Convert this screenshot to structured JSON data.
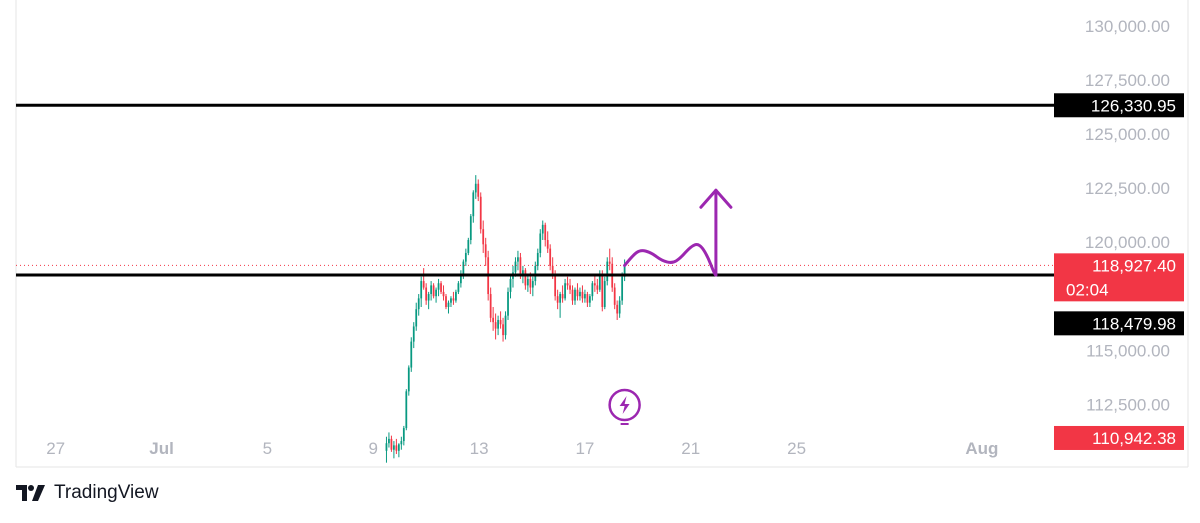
{
  "chart_data": {
    "type": "candlestick",
    "title": "",
    "ylim": [
      109600,
      131200
    ],
    "y_ticks": [
      "130,000.00",
      "127,500.00",
      "125,000.00",
      "122,500.00",
      "120,000.00",
      "115,000.00",
      "112,500.00"
    ],
    "x_ticks": [
      {
        "label": "27",
        "x": "2025-06-27",
        "bold": false
      },
      {
        "label": "Jul",
        "x": "2025-07-01",
        "bold": true
      },
      {
        "label": "5",
        "x": "2025-07-05",
        "bold": false
      },
      {
        "label": "9",
        "x": "2025-07-09",
        "bold": false
      },
      {
        "label": "13",
        "x": "2025-07-13",
        "bold": false
      },
      {
        "label": "17",
        "x": "2025-07-17",
        "bold": false
      },
      {
        "label": "21",
        "x": "2025-07-21",
        "bold": false
      },
      {
        "label": "25",
        "x": "2025-07-25",
        "bold": false
      },
      {
        "label": "Aug",
        "x": "2025-08-01",
        "bold": true
      }
    ],
    "xlim": [
      "2025-06-25 12:00",
      "2025-08-03 12:00"
    ],
    "up_color": "#089981",
    "down_color": "#f23645",
    "candles_ohlc": [
      [
        110350,
        111000,
        109800,
        110700
      ],
      [
        110700,
        111200,
        110500,
        110900
      ],
      [
        110900,
        111050,
        110300,
        110400
      ],
      [
        110400,
        110800,
        110000,
        110600
      ],
      [
        110600,
        110900,
        110200,
        110350
      ],
      [
        110350,
        110700,
        110050,
        110650
      ],
      [
        110650,
        111000,
        110400,
        110800
      ],
      [
        110800,
        111500,
        110600,
        111400
      ],
      [
        111400,
        113200,
        111300,
        113100
      ],
      [
        113100,
        114300,
        112900,
        114200
      ],
      [
        114200,
        115600,
        114000,
        115400
      ],
      [
        115400,
        116300,
        115100,
        116100
      ],
      [
        116100,
        117200,
        115900,
        116900
      ],
      [
        116900,
        117600,
        116600,
        117400
      ],
      [
        117400,
        118400,
        117000,
        118200
      ],
      [
        118200,
        118800,
        117800,
        117900
      ],
      [
        117900,
        118100,
        117100,
        117300
      ],
      [
        117300,
        117700,
        116900,
        117600
      ],
      [
        117600,
        118200,
        117300,
        118000
      ],
      [
        118000,
        118100,
        117400,
        117500
      ],
      [
        117500,
        117900,
        117200,
        117800
      ],
      [
        117800,
        118300,
        117500,
        118100
      ],
      [
        118100,
        118200,
        117600,
        117700
      ],
      [
        117700,
        118000,
        117300,
        117500
      ],
      [
        117500,
        117600,
        116900,
        117000
      ],
      [
        117000,
        117300,
        116700,
        117200
      ],
      [
        117200,
        117500,
        117000,
        117400
      ],
      [
        117400,
        117700,
        117100,
        117300
      ],
      [
        117300,
        117800,
        117200,
        117700
      ],
      [
        117700,
        118200,
        117600,
        118100
      ],
      [
        118100,
        118700,
        117900,
        118500
      ],
      [
        118500,
        119200,
        118300,
        119100
      ],
      [
        119100,
        119700,
        118900,
        119500
      ],
      [
        119500,
        120200,
        119400,
        120100
      ],
      [
        120100,
        121300,
        119900,
        121200
      ],
      [
        121200,
        122400,
        120900,
        122300
      ],
      [
        122300,
        123100,
        122000,
        122700
      ],
      [
        122700,
        122900,
        121900,
        122100
      ],
      [
        122100,
        122300,
        120400,
        120600
      ],
      [
        120600,
        121000,
        119500,
        119900
      ],
      [
        119900,
        120200,
        118900,
        119300
      ],
      [
        119300,
        119600,
        117300,
        117600
      ],
      [
        117600,
        117900,
        116300,
        116500
      ],
      [
        116500,
        117000,
        115900,
        116300
      ],
      [
        116300,
        116700,
        115500,
        116000
      ],
      [
        116000,
        116600,
        115700,
        116400
      ],
      [
        116400,
        116800,
        116000,
        116200
      ],
      [
        116200,
        116500,
        115400,
        115700
      ],
      [
        115700,
        116800,
        115500,
        116600
      ],
      [
        116600,
        117900,
        116400,
        117700
      ],
      [
        117700,
        118500,
        117400,
        118300
      ],
      [
        118300,
        118900,
        117900,
        118600
      ],
      [
        118600,
        119300,
        118400,
        119100
      ],
      [
        119100,
        119600,
        118700,
        119300
      ],
      [
        119300,
        119500,
        118300,
        118500
      ],
      [
        118500,
        118900,
        118100,
        118700
      ],
      [
        118700,
        118800,
        117800,
        118000
      ],
      [
        118000,
        118500,
        117700,
        118300
      ],
      [
        118300,
        118600,
        117600,
        117900
      ],
      [
        117900,
        118400,
        117500,
        118200
      ],
      [
        118200,
        119100,
        118000,
        118900
      ],
      [
        118900,
        119700,
        118700,
        119500
      ],
      [
        119500,
        120600,
        119300,
        120400
      ],
      [
        120400,
        121000,
        120100,
        120800
      ],
      [
        120800,
        120900,
        119800,
        120100
      ],
      [
        120100,
        120500,
        119500,
        119700
      ],
      [
        119700,
        119900,
        118700,
        118900
      ],
      [
        118900,
        119300,
        118300,
        118500
      ],
      [
        118500,
        118700,
        117300,
        117500
      ],
      [
        117500,
        117800,
        116900,
        117200
      ],
      [
        117200,
        117700,
        116500,
        117600
      ],
      [
        117600,
        118000,
        117200,
        117400
      ],
      [
        117400,
        118300,
        117300,
        118100
      ],
      [
        118100,
        118400,
        117800,
        118000
      ],
      [
        118000,
        118300,
        117600,
        117800
      ],
      [
        117800,
        118000,
        117100,
        117300
      ],
      [
        117300,
        117900,
        117100,
        117800
      ],
      [
        117800,
        118100,
        117300,
        117500
      ],
      [
        117500,
        117900,
        117300,
        117700
      ],
      [
        117700,
        118000,
        117200,
        117400
      ],
      [
        117400,
        117800,
        117200,
        117600
      ],
      [
        117600,
        117700,
        117000,
        117200
      ],
      [
        117200,
        117600,
        117000,
        117500
      ],
      [
        117500,
        118200,
        117300,
        118100
      ],
      [
        118100,
        118500,
        117700,
        118000
      ],
      [
        118000,
        118300,
        117600,
        117800
      ],
      [
        117800,
        118700,
        117700,
        118500
      ],
      [
        118500,
        118700,
        116800,
        117000
      ],
      [
        117000,
        118400,
        116900,
        118200
      ],
      [
        118200,
        119300,
        118000,
        119100
      ],
      [
        119100,
        119700,
        118700,
        119000
      ],
      [
        119000,
        119300,
        117700,
        117900
      ],
      [
        117900,
        118100,
        116900,
        117100
      ],
      [
        117100,
        117300,
        116400,
        116700
      ],
      [
        116700,
        117500,
        116500,
        117300
      ],
      [
        117300,
        118600,
        117100,
        118400
      ],
      [
        118400,
        119200,
        118200,
        118927
      ]
    ],
    "candles_start": "2025-07-09 12:00",
    "candles_step_hours": 2.25,
    "levels": [
      {
        "price": 126330.95,
        "label": "126,330.95",
        "line_color": "#000000",
        "tag_bg": "#000000"
      },
      {
        "price": 118479.98,
        "label": "118,479.98",
        "line_color": "#000000",
        "tag_bg": "#000000"
      }
    ],
    "current_price": {
      "price": 118927.4,
      "label": "118,927.40",
      "countdown": "02:04",
      "color": "#f23645"
    },
    "low_marker": {
      "price": 110942.38,
      "label": "110,942.38",
      "color": "#f23645"
    },
    "projection_color": "#9c27b0",
    "projection_path": [
      [
        0,
        118920
      ],
      [
        0.3,
        119380
      ],
      [
        0.6,
        119650
      ],
      [
        1.0,
        119520
      ],
      [
        1.4,
        119150
      ],
      [
        1.8,
        119020
      ],
      [
        2.1,
        119250
      ],
      [
        2.5,
        119800
      ],
      [
        2.8,
        119950
      ],
      [
        3.1,
        119450
      ],
      [
        3.4,
        118520
      ],
      [
        3.45,
        118479.98
      ]
    ],
    "projection_arrow": {
      "from": [
        3.45,
        118479.98
      ],
      "to": [
        3.45,
        122400
      ]
    },
    "event_icon": "lightning-bolt-icon"
  },
  "brand": {
    "name": "TradingView",
    "logo_icon": "tradingview-logo-icon"
  }
}
